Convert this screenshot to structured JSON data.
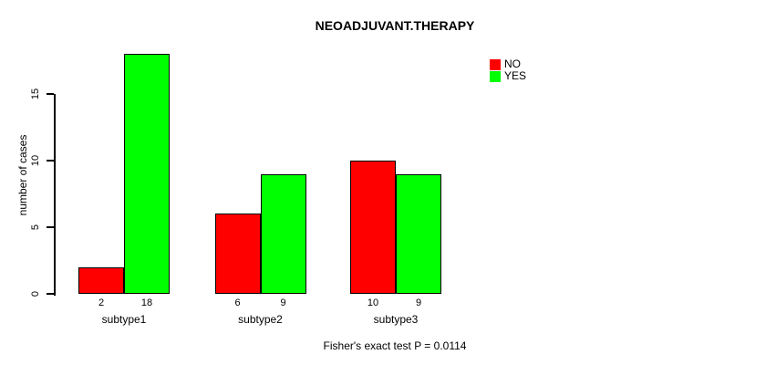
{
  "figure": {
    "background": "#FFFFFF"
  },
  "chart_data": {
    "type": "bar",
    "title": "NEOADJUVANT.THERAPY",
    "xlabel": "",
    "ylabel": "number of cases",
    "categories": [
      "subtype1",
      "subtype2",
      "subtype3"
    ],
    "series": [
      {
        "name": "NO",
        "color": "#FF0000",
        "values": [
          2,
          6,
          10
        ]
      },
      {
        "name": "YES",
        "color": "#00FF00",
        "values": [
          18,
          9,
          9
        ]
      }
    ],
    "bar_value_labels": [
      [
        "2",
        "18"
      ],
      [
        "6",
        "9"
      ],
      [
        "10",
        "9"
      ]
    ],
    "ylim": [
      0,
      18
    ],
    "yticks": [
      0,
      5,
      10,
      15
    ],
    "grid": false,
    "bar_border_color": "#000000",
    "legend_position": "top-right",
    "legend": [
      {
        "label": "NO",
        "color": "#FF0000"
      },
      {
        "label": "YES",
        "color": "#00FF00"
      }
    ],
    "annotation": "Fisher's exact test P = 0.0114"
  }
}
